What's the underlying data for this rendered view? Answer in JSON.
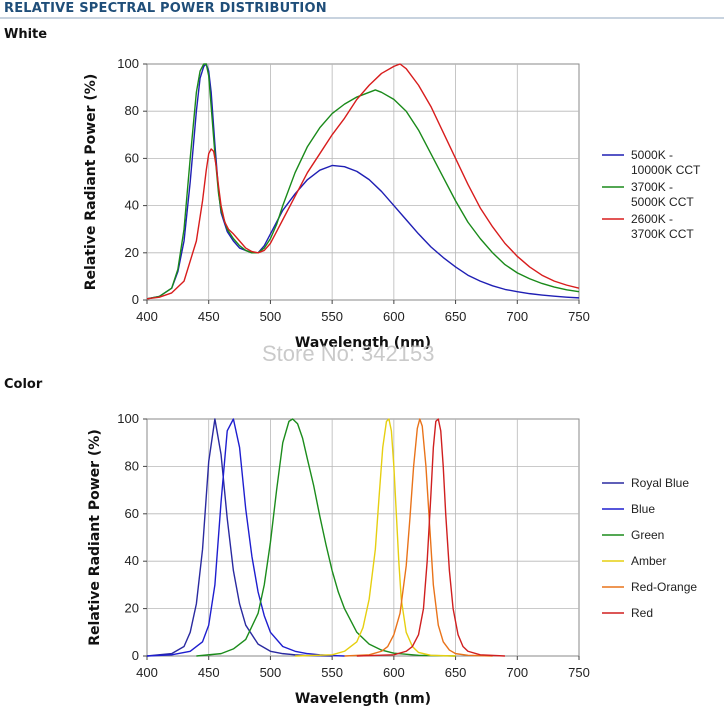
{
  "header": {
    "title": "RELATIVE SPECTRAL POWER DISTRIBUTION",
    "watermark": "Store No: 342153",
    "colors": {
      "title": "#1f4e79",
      "rule": "#c8d3df"
    }
  },
  "chart_data": [
    {
      "type": "line",
      "section_label": "White",
      "xlabel": "Wavelength (nm)",
      "ylabel": "Relative Radiant Power (%)",
      "xlim": [
        400,
        750
      ],
      "ylim": [
        0,
        100
      ],
      "xticks": [
        400,
        450,
        500,
        550,
        600,
        650,
        700,
        750
      ],
      "yticks": [
        0,
        20,
        40,
        60,
        80,
        100
      ],
      "grid": "horizontal-and-vertical",
      "legend_position": "right",
      "series": [
        {
          "name": [
            "5000K -",
            "10000K CCT"
          ],
          "color": "#1f1fb4",
          "x": [
            400,
            410,
            420,
            425,
            430,
            435,
            440,
            443,
            446,
            448,
            450,
            452,
            455,
            458,
            460,
            465,
            470,
            475,
            480,
            485,
            490,
            495,
            500,
            505,
            510,
            520,
            530,
            540,
            550,
            560,
            570,
            580,
            590,
            600,
            610,
            620,
            630,
            640,
            650,
            660,
            670,
            680,
            690,
            700,
            710,
            720,
            730,
            740,
            750
          ],
          "y": [
            0.5,
            1.5,
            5,
            12,
            25,
            50,
            80,
            94,
            99,
            100,
            97,
            88,
            66,
            46,
            37,
            29,
            25,
            22,
            21,
            20,
            20,
            23,
            28,
            33,
            38,
            45,
            51,
            55,
            57,
            56.5,
            54.5,
            51,
            46,
            40,
            34,
            28,
            22.5,
            18,
            14,
            10.5,
            8,
            6,
            4.5,
            3.5,
            2.7,
            2.1,
            1.6,
            1.2,
            0.9
          ]
        },
        {
          "name": [
            "3700K -",
            "5000K CCT"
          ],
          "color": "#1a8a1a",
          "x": [
            400,
            410,
            420,
            425,
            430,
            435,
            440,
            443,
            446,
            448,
            450,
            452,
            455,
            458,
            460,
            465,
            470,
            475,
            480,
            485,
            490,
            495,
            500,
            505,
            510,
            520,
            530,
            540,
            550,
            560,
            570,
            580,
            585,
            590,
            600,
            610,
            620,
            630,
            640,
            650,
            660,
            670,
            680,
            690,
            700,
            710,
            720,
            730,
            740,
            750
          ],
          "y": [
            0.5,
            1.5,
            5,
            13,
            30,
            60,
            88,
            97,
            100,
            100,
            95,
            82,
            62,
            45,
            38,
            30,
            26,
            23,
            21,
            20,
            20,
            22,
            26,
            32,
            40,
            54,
            65,
            73,
            79,
            83,
            86,
            88,
            89,
            88,
            85,
            80,
            72,
            62,
            52,
            42,
            33,
            26,
            20,
            15,
            11.5,
            9,
            7,
            5.5,
            4.3,
            3.5
          ]
        },
        {
          "name": [
            "2600K -",
            "3700K CCT"
          ],
          "color": "#d81d1d",
          "x": [
            400,
            410,
            420,
            430,
            440,
            445,
            448,
            450,
            452,
            454,
            456,
            458,
            460,
            463,
            466,
            470,
            475,
            480,
            485,
            490,
            495,
            500,
            505,
            510,
            520,
            530,
            540,
            550,
            560,
            570,
            580,
            590,
            600,
            605,
            610,
            620,
            630,
            640,
            650,
            660,
            670,
            680,
            690,
            700,
            710,
            720,
            730,
            740,
            750
          ],
          "y": [
            0.5,
            1.2,
            3,
            8,
            25,
            42,
            55,
            62,
            64,
            63,
            57,
            48,
            40,
            33,
            30,
            28,
            25,
            22,
            20.5,
            20,
            21,
            24,
            29,
            34,
            44,
            54,
            62,
            70,
            77,
            85,
            91,
            96,
            99,
            100,
            98,
            91,
            82,
            71,
            60,
            49,
            39,
            31,
            24,
            18.5,
            14,
            10.5,
            8,
            6.3,
            5
          ]
        }
      ]
    },
    {
      "type": "line",
      "section_label": "Color",
      "xlabel": "Wavelength (nm)",
      "ylabel": "Relative Radiant Power (%)",
      "xlim": [
        400,
        750
      ],
      "ylim": [
        0,
        100
      ],
      "xticks": [
        400,
        450,
        500,
        550,
        600,
        650,
        700,
        750
      ],
      "yticks": [
        0,
        20,
        40,
        60,
        80,
        100
      ],
      "grid": "horizontal-and-vertical",
      "legend_position": "right",
      "series": [
        {
          "name": [
            "Royal Blue"
          ],
          "color": "#2a2aa0",
          "x": [
            400,
            420,
            430,
            435,
            440,
            445,
            450,
            455,
            460,
            465,
            470,
            475,
            480,
            490,
            500,
            510,
            520,
            530,
            540,
            550
          ],
          "y": [
            0,
            1,
            4,
            10,
            22,
            45,
            82,
            100,
            85,
            58,
            36,
            22,
            13,
            5,
            2,
            1,
            0.5,
            0.2,
            0.1,
            0
          ]
        },
        {
          "name": [
            "Blue"
          ],
          "color": "#1e1ecf",
          "x": [
            400,
            420,
            435,
            445,
            450,
            455,
            460,
            465,
            470,
            475,
            480,
            485,
            490,
            495,
            500,
            510,
            520,
            530,
            540,
            550,
            560
          ],
          "y": [
            0,
            0.5,
            2,
            6,
            13,
            30,
            65,
            95,
            100,
            88,
            62,
            42,
            27,
            17,
            10,
            4,
            2,
            1,
            0.5,
            0.2,
            0
          ]
        },
        {
          "name": [
            "Green"
          ],
          "color": "#1c8c1c",
          "x": [
            440,
            460,
            470,
            480,
            490,
            495,
            500,
            505,
            510,
            515,
            518,
            522,
            526,
            530,
            535,
            540,
            545,
            550,
            555,
            560,
            570,
            580,
            590,
            600,
            620,
            650
          ],
          "y": [
            0,
            1,
            3,
            7,
            18,
            30,
            48,
            70,
            90,
            99,
            100,
            98,
            92,
            83,
            72,
            59,
            47,
            36,
            27,
            20,
            10,
            5,
            2.5,
            1.2,
            0.3,
            0
          ]
        },
        {
          "name": [
            "Amber"
          ],
          "color": "#e6cf10",
          "x": [
            520,
            550,
            560,
            570,
            575,
            580,
            585,
            588,
            591,
            594,
            596,
            598,
            600,
            602,
            604,
            606,
            610,
            615,
            620,
            630,
            650
          ],
          "y": [
            0,
            0.5,
            2,
            6,
            12,
            24,
            45,
            67,
            88,
            99,
            100,
            95,
            80,
            60,
            40,
            24,
            10,
            4,
            1.5,
            0.3,
            0
          ]
        },
        {
          "name": [
            "Red-Orange"
          ],
          "color": "#e9731a",
          "x": [
            560,
            580,
            590,
            595,
            600,
            605,
            610,
            613,
            616,
            619,
            621,
            623,
            626,
            629,
            632,
            636,
            640,
            645,
            650,
            660,
            680
          ],
          "y": [
            0,
            0.5,
            2,
            4,
            9,
            18,
            38,
            58,
            80,
            96,
            100,
            97,
            80,
            55,
            30,
            13,
            6,
            2.5,
            1,
            0.3,
            0
          ]
        },
        {
          "name": [
            "Red"
          ],
          "color": "#d01f1f",
          "x": [
            570,
            600,
            610,
            615,
            620,
            624,
            627,
            630,
            632,
            634,
            636,
            638,
            640,
            642,
            645,
            648,
            652,
            656,
            660,
            670,
            690
          ],
          "y": [
            0,
            0.5,
            2,
            4,
            9,
            20,
            40,
            68,
            88,
            99,
            100,
            95,
            80,
            60,
            36,
            20,
            9,
            4,
            2,
            0.5,
            0
          ]
        }
      ]
    }
  ]
}
